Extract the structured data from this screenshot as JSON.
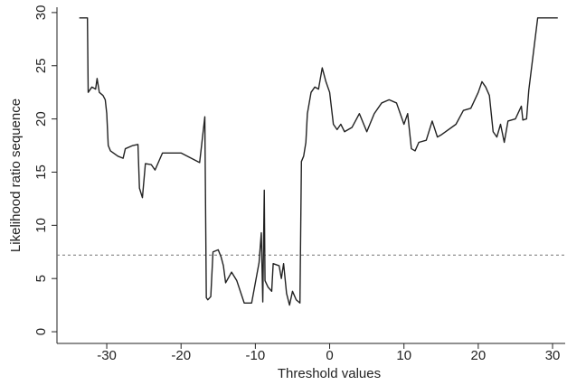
{
  "chart_data": {
    "type": "line",
    "xlabel": "Threshold values",
    "ylabel": "Likelihood ratio sequence",
    "xlim": [
      -36.7,
      31.7
    ],
    "ylim": [
      -1.1,
      30.5
    ],
    "xticks": [
      -30,
      -20,
      -10,
      0,
      10,
      20,
      30
    ],
    "yticks": [
      0,
      5,
      10,
      15,
      20,
      25,
      30
    ],
    "hline": 7.2,
    "hline_color": "#777777",
    "series": [
      {
        "color": "#222222",
        "x": [
          -33.7,
          -32.6,
          -32.5,
          -32,
          -31.5,
          -31.3,
          -31,
          -30.5,
          -30.2,
          -30,
          -29.8,
          -29.5,
          -28.5,
          -27.8,
          -27.5,
          -26.5,
          -25.8,
          -25.6,
          -25.2,
          -24.8,
          -24,
          -23.5,
          -22.5,
          -20,
          -17.5,
          -16.8,
          -16.6,
          -16.4,
          -16,
          -15.7,
          -15,
          -14.6,
          -14.3,
          -14,
          -13.2,
          -12.5,
          -11.5,
          -10.5,
          -9.5,
          -9.2,
          -9,
          -8.8,
          -8.7,
          -8.3,
          -7.8,
          -7.6,
          -6.8,
          -6.5,
          -6.2,
          -5.8,
          -5.4,
          -5,
          -4.5,
          -4,
          -3.8,
          -3.5,
          -3.2,
          -3,
          -2.5,
          -2,
          -1.5,
          -1,
          -0.5,
          0,
          0.5,
          1,
          1.5,
          2,
          3,
          4,
          5,
          6,
          7,
          8,
          9,
          10,
          10.5,
          11,
          11.5,
          12,
          13,
          13.8,
          14.5,
          15,
          17,
          18,
          19,
          20,
          20.5,
          21,
          21.5,
          22,
          22.5,
          23,
          23.5,
          24,
          25,
          25.8,
          26,
          26.5,
          26.8,
          28,
          30.7
        ],
        "values": [
          29.5,
          29.5,
          22.5,
          23,
          22.8,
          23.8,
          22.5,
          22.2,
          21.8,
          20.5,
          17.5,
          17,
          16.5,
          16.3,
          17.2,
          17.5,
          17.6,
          13.5,
          12.6,
          15.8,
          15.7,
          15.2,
          16.8,
          16.8,
          15.9,
          20.2,
          3.2,
          3.0,
          3.3,
          7.5,
          7.7,
          7.0,
          6.2,
          4.6,
          5.6,
          4.8,
          2.7,
          2.7,
          6.5,
          9.3,
          2.8,
          13.3,
          4.8,
          4.2,
          3.8,
          6.4,
          6.2,
          5.0,
          6.4,
          3.6,
          2.5,
          3.8,
          3.0,
          2.7,
          16.0,
          16.5,
          17.8,
          20.5,
          22.5,
          23,
          22.8,
          24.8,
          23.5,
          22.5,
          19.5,
          19.0,
          19.5,
          18.8,
          19.2,
          20.5,
          18.8,
          20.5,
          21.5,
          21.8,
          21.5,
          19.5,
          20.5,
          17.2,
          17.0,
          17.8,
          18,
          19.8,
          18.3,
          18.5,
          19.5,
          20.8,
          21,
          22.5,
          23.5,
          23,
          22.2,
          18.8,
          18.3,
          19.5,
          17.8,
          19.8,
          20,
          21.2,
          19.9,
          20,
          22.7,
          29.5,
          29.5
        ]
      }
    ]
  }
}
